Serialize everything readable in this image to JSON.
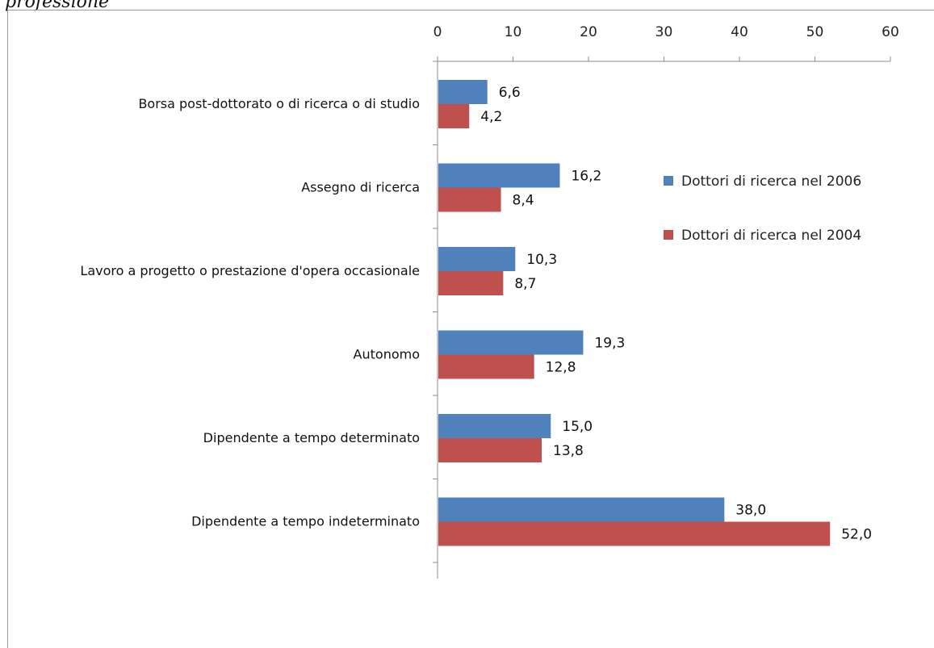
{
  "caption": "professione",
  "chart_data": {
    "type": "bar",
    "orientation": "horizontal",
    "title": "",
    "xlabel": "",
    "ylabel": "",
    "xlim": [
      0,
      60
    ],
    "x_ticks": [
      0,
      10,
      20,
      30,
      40,
      50,
      60
    ],
    "x_axis_position": "top",
    "grid": false,
    "legend_position": "right",
    "categories": [
      "Borsa post-dottorato o di ricerca o di studio",
      "Assegno di ricerca",
      "Lavoro a progetto o prestazione d'opera occasionale",
      "Autonomo",
      "Dipendente a tempo determinato",
      "Dipendente a tempo indeterminato"
    ],
    "series": [
      {
        "name": "Dottori di ricerca nel 2006",
        "color": "#4f81bd",
        "values": [
          6.6,
          16.2,
          10.3,
          19.3,
          15.0,
          38.0
        ],
        "labels": [
          "6,6",
          "16,2",
          "10,3",
          "19,3",
          "15,0",
          "38,0"
        ]
      },
      {
        "name": "Dottori di ricerca nel 2004",
        "color": "#c0504d",
        "values": [
          4.2,
          8.4,
          8.7,
          12.8,
          13.8,
          52.0
        ],
        "labels": [
          "4,2",
          "8,4",
          "8,7",
          "12,8",
          "13,8",
          "52,0"
        ]
      }
    ]
  }
}
